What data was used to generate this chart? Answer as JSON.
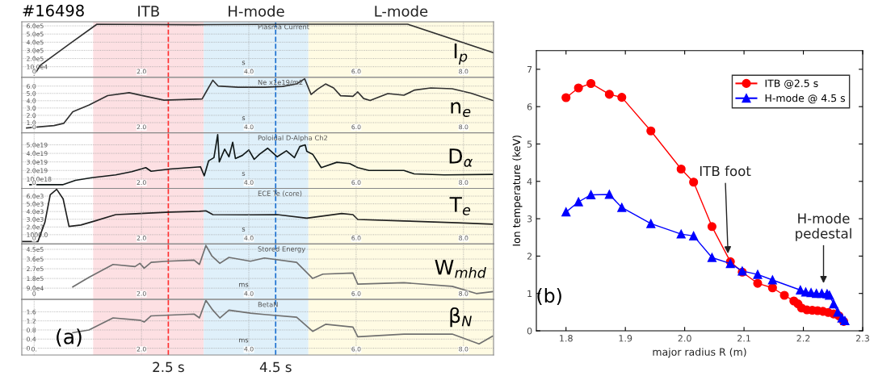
{
  "chart_data": [
    {
      "type": "line",
      "title": "#16498",
      "subtitle": "Plasma Current",
      "xlabel": "s",
      "annotations": [
        "I$_{p}$"
      ],
      "grid": true,
      "xlim": [
        -0.23,
        8.56
      ],
      "xticks": [
        0,
        {
          "value": 2,
          "label": "2.0"
        },
        {
          "value": 4,
          "label": "4.0"
        },
        {
          "value": 6,
          "label": "6.0"
        },
        {
          "value": 8,
          "label": "8.0"
        }
      ],
      "ylim": [
        -30000,
        650000
      ],
      "yticks": [
        {
          "value": 100000,
          "label": "10.0e4"
        },
        {
          "value": 200000,
          "label": "2.0e5"
        },
        {
          "value": 300000,
          "label": "3.0e5"
        },
        {
          "value": 400000,
          "label": "4.0e5"
        },
        {
          "value": 500000,
          "label": "5.0e5"
        },
        {
          "value": 600000,
          "label": "6.0e5"
        }
      ],
      "bands": [
        {
          "axis": "x",
          "from": 1.1,
          "to": 3.16,
          "label": "ITB",
          "color": "#fde0e3"
        },
        {
          "axis": "x",
          "from": 3.16,
          "to": 5.11,
          "label": "H-mode",
          "color": "#dff0fa"
        },
        {
          "axis": "x",
          "from": 5.11,
          "to": 8.56,
          "label": "L-mode",
          "color": "#fffbe3"
        }
      ],
      "ref_lines": [
        {
          "axis": "x",
          "value": 2.5,
          "color": "#ff3030",
          "line_style": "dashed"
        },
        {
          "axis": "x",
          "value": 4.5,
          "color": "#1a6fd0",
          "line_style": "dashed"
        }
      ],
      "series": [
        {
          "color": "#303030",
          "x": [
            0,
            0.12,
            0.66,
            1.17,
            3.0,
            5.0,
            6.96,
            8.56
          ],
          "values": [
            0,
            120000,
            380000,
            620000,
            615000,
            620000,
            620000,
            270000
          ]
        }
      ]
    },
    {
      "type": "line",
      "subtitle": "Ne x1e19/m2",
      "xlabel": "s",
      "annotations": [
        "n$_{e}$"
      ],
      "grid": true,
      "xlim": [
        -0.23,
        8.56
      ],
      "xticks": [
        0,
        {
          "value": 2,
          "label": "2.0"
        },
        {
          "value": 4,
          "label": "4.0"
        },
        {
          "value": 6,
          "label": "6.0"
        },
        {
          "value": 8,
          "label": "8.0"
        }
      ],
      "ylim": [
        -0.4,
        7.2
      ],
      "yticks": [
        {
          "value": 1,
          "label": "1.0"
        },
        {
          "value": 2,
          "label": "2.0"
        },
        {
          "value": 3,
          "label": "3.0"
        },
        {
          "value": 4,
          "label": "4.0"
        },
        {
          "value": 5,
          "label": "5.0"
        },
        {
          "value": 6,
          "label": "6.0"
        }
      ],
      "bands": [
        {
          "axis": "x",
          "from": 1.1,
          "to": 3.16,
          "color": "#fde0e3"
        },
        {
          "axis": "x",
          "from": 3.16,
          "to": 5.11,
          "color": "#dff0fa"
        },
        {
          "axis": "x",
          "from": 5.11,
          "to": 8.56,
          "color": "#fffbe3"
        }
      ],
      "ref_lines": [
        {
          "axis": "x",
          "value": 2.5,
          "color": "#ff3030",
          "line_style": "dashed"
        },
        {
          "axis": "x",
          "value": 4.5,
          "color": "#1a6fd0",
          "line_style": "dashed"
        }
      ],
      "series": [
        {
          "color": "#303030",
          "x": [
            -0.14,
            0.37,
            0.55,
            0.72,
            1.02,
            1.37,
            1.77,
            2.08,
            2.42,
            3.13,
            3.33,
            3.43,
            3.8,
            4.3,
            4.63,
            4.89,
            5.04,
            5.16,
            5.28,
            5.43,
            5.58,
            5.71,
            5.94,
            6.03,
            6.14,
            6.26,
            6.59,
            6.89,
            7.09,
            7.39,
            7.79,
            8.14,
            8.55
          ],
          "values": [
            0.28,
            0.6,
            0.9,
            2.5,
            3.4,
            4.7,
            5.1,
            4.6,
            4.07,
            4.25,
            6.8,
            6.0,
            5.85,
            5.85,
            5.95,
            6.3,
            7.0,
            4.86,
            5.57,
            6.29,
            5.75,
            4.68,
            4.6,
            5.2,
            4.3,
            4.03,
            4.97,
            4.75,
            5.46,
            5.75,
            5.64,
            5.03,
            4.03
          ]
        }
      ]
    },
    {
      "type": "line",
      "subtitle": "Poloidal D-Alpha Ch2",
      "xlabel": "s",
      "annotations": [
        "D$_{α}$"
      ],
      "grid": true,
      "xlim": [
        -0.23,
        8.56
      ],
      "xticks": [
        0,
        {
          "value": 2,
          "label": "2.0"
        },
        {
          "value": 4,
          "label": "4.0"
        },
        {
          "value": 6,
          "label": "6.0"
        },
        {
          "value": 8,
          "label": "8.0"
        }
      ],
      "ylim": [
        -1e+18,
        6.4e+19
      ],
      "yticks": [
        {
          "value": 1e+19,
          "label": "10.0e18"
        },
        {
          "value": 2e+19,
          "label": "2.0e19"
        },
        {
          "value": 3e+19,
          "label": "3.0e19"
        },
        {
          "value": 4e+19,
          "label": "4.0e19"
        },
        {
          "value": 5e+19,
          "label": "5.0e19"
        }
      ],
      "bands": [
        {
          "axis": "x",
          "from": 1.1,
          "to": 3.16,
          "color": "#fde0e3"
        },
        {
          "axis": "x",
          "from": 3.16,
          "to": 5.11,
          "color": "#dff0fa"
        },
        {
          "axis": "x",
          "from": 5.11,
          "to": 8.56,
          "color": "#fffbe3"
        }
      ],
      "ref_lines": [
        {
          "axis": "x",
          "value": 2.5,
          "color": "#ff3030",
          "line_style": "dashed"
        },
        {
          "axis": "x",
          "value": 4.5,
          "color": "#1a6fd0",
          "line_style": "dashed"
        }
      ],
      "series": [
        {
          "color": "#101818",
          "x": [
            -0.08,
            0.53,
            0.77,
            1.07,
            1.52,
            1.82,
            2.08,
            2.18,
            2.53,
            3.1,
            3.17,
            3.25,
            3.35,
            3.42,
            3.45,
            3.55,
            3.63,
            3.7,
            3.75,
            3.88,
            4.0,
            4.1,
            4.2,
            4.35,
            4.53,
            4.7,
            4.85,
            4.95,
            5.05,
            5.08,
            5.19,
            5.35,
            5.64,
            5.88,
            6.03,
            6.24,
            6.89,
            7.08,
            7.64,
            8.54
          ],
          "values": [
            3.3e+18,
            3.3e+18,
            8.4e+18,
            1.15e+19,
            1.48e+19,
            1.86e+19,
            2.33e+19,
            1.91e+19,
            2.17e+19,
            2.43e+19,
            1.38e+19,
            3.12e+19,
            3.5e+19,
            6.2e+19,
            3e+19,
            4.5e+19,
            3.6e+19,
            5.3e+19,
            3.4e+19,
            3.76e+19,
            4.4e+19,
            3.3e+19,
            3.9e+19,
            4.6e+19,
            3.6e+19,
            4.3e+19,
            3.5e+19,
            4.8e+19,
            5e+19,
            4.24e+19,
            3.9e+19,
            2.33e+19,
            2.96e+19,
            2.8e+19,
            2.33e+19,
            2e+19,
            2e+19,
            1.6e+19,
            1.48e+19,
            1.54e+19
          ]
        }
      ]
    },
    {
      "type": "line",
      "subtitle": "ECE Te (core)",
      "xlabel": "s",
      "annotations": [
        "T$_{e}$"
      ],
      "grid": true,
      "xlim": [
        -0.23,
        8.56
      ],
      "xticks": [
        0,
        {
          "value": 2,
          "label": "2.0"
        },
        {
          "value": 4,
          "label": "4.0"
        },
        {
          "value": 6,
          "label": "6.0"
        },
        {
          "value": 8,
          "label": "8.0"
        }
      ],
      "ylim": [
        -200,
        7000
      ],
      "yticks": [
        {
          "value": 1000,
          "label": "1000.0"
        },
        {
          "value": 2000,
          "label": "2.0e3"
        },
        {
          "value": 3000,
          "label": "3.0e3"
        },
        {
          "value": 4000,
          "label": "4.0e3"
        },
        {
          "value": 5000,
          "label": "5.0e3"
        },
        {
          "value": 6000,
          "label": "6.0e3"
        }
      ],
      "bands": [
        {
          "axis": "x",
          "from": 1.1,
          "to": 3.16,
          "color": "#fde0e3"
        },
        {
          "axis": "x",
          "from": 3.16,
          "to": 5.11,
          "color": "#dff0fa"
        },
        {
          "axis": "x",
          "from": 5.11,
          "to": 8.56,
          "color": "#fffbe3"
        }
      ],
      "ref_lines": [
        {
          "axis": "x",
          "value": 2.5,
          "color": "#ff3030",
          "line_style": "dashed"
        },
        {
          "axis": "x",
          "value": 4.5,
          "color": "#1a6fd0",
          "line_style": "dashed"
        }
      ],
      "series": [
        {
          "color": "#202020",
          "x": [
            -0.23,
            0.07,
            0.2,
            0.3,
            0.42,
            0.54,
            0.65,
            0.87,
            1.13,
            1.52,
            1.97,
            2.53,
            3.08,
            3.2,
            3.33,
            4.03,
            4.53,
            5.08,
            5.73,
            5.94,
            6.03,
            6.89,
            7.89,
            8.54
          ],
          "values": [
            107,
            107,
            2600,
            6180,
            6880,
            5640,
            2070,
            2250,
            2780,
            3600,
            3750,
            3930,
            4030,
            4100,
            3600,
            3570,
            3600,
            3140,
            3750,
            3600,
            2970,
            2780,
            2540,
            2360
          ]
        }
      ]
    },
    {
      "type": "line",
      "subtitle": "Stored Energy",
      "xlabel": "ms",
      "annotations": [
        "W$_{mhd}$"
      ],
      "grid": true,
      "xlim": [
        -0.23,
        8.56
      ],
      "xticks": [
        0,
        {
          "value": 2,
          "label": "2.0"
        },
        {
          "value": 4,
          "label": "4.0"
        },
        {
          "value": 6,
          "label": "6.0"
        },
        {
          "value": 8,
          "label": "8.0"
        }
      ],
      "ylim": [
        -15000,
        500000
      ],
      "yticks": [
        {
          "value": 90000,
          "label": "9.0e4"
        },
        {
          "value": 180000,
          "label": "1.8e5"
        },
        {
          "value": 270000,
          "label": "2.7e5"
        },
        {
          "value": 360000,
          "label": "3.6e5"
        },
        {
          "value": 450000,
          "label": "4.5e5"
        }
      ],
      "bands": [
        {
          "axis": "x",
          "from": 1.1,
          "to": 3.16,
          "color": "#fde0e3"
        },
        {
          "axis": "x",
          "from": 3.16,
          "to": 5.11,
          "color": "#dff0fa"
        },
        {
          "axis": "x",
          "from": 5.11,
          "to": 8.56,
          "color": "#fffbe3"
        }
      ],
      "ref_lines": [
        {
          "axis": "x",
          "value": 2.5,
          "color": "#ff3030",
          "line_style": "dashed"
        },
        {
          "axis": "x",
          "value": 4.5,
          "color": "#1a6fd0",
          "line_style": "dashed"
        }
      ],
      "series": [
        {
          "color": "#707070",
          "x": [
            0.72,
            1.02,
            1.47,
            1.88,
            1.97,
            2.05,
            2.18,
            2.48,
            2.98,
            3.08,
            3.2,
            3.31,
            3.46,
            3.63,
            4.03,
            4.29,
            4.89,
            5.19,
            5.38,
            5.94,
            6.03,
            6.89,
            7.79,
            8.24,
            8.54
          ],
          "values": [
            102000,
            190000,
            310000,
            290000,
            320000,
            275000,
            330000,
            340000,
            350000,
            310000,
            486000,
            390000,
            320000,
            375000,
            340000,
            370000,
            330000,
            180000,
            220000,
            230000,
            128000,
            140000,
            107000,
            40000,
            57000
          ]
        }
      ]
    },
    {
      "type": "line",
      "subtitle": "BetaN",
      "xlabel": "ms",
      "annotations": [
        "β$_{N}$",
        "(a)"
      ],
      "grid": true,
      "xlim": [
        -0.23,
        8.56
      ],
      "xticks": [
        {
          "value": 0,
          "label": "0."
        },
        {
          "value": 2,
          "label": "2.0"
        },
        {
          "value": 4,
          "label": "4.0"
        },
        {
          "value": 6,
          "label": "6.0"
        },
        {
          "value": 8,
          "label": "8.0"
        }
      ],
      "ylim": [
        -0.3,
        2.14
      ],
      "yticks": [
        {
          "value": 0,
          "label": "0."
        },
        0.4,
        0.8,
        1.2,
        1.6
      ],
      "bands": [
        {
          "axis": "x",
          "from": 1.1,
          "to": 3.16,
          "color": "#fde0e3"
        },
        {
          "axis": "x",
          "from": 3.16,
          "to": 5.11,
          "color": "#dff0fa"
        },
        {
          "axis": "x",
          "from": 5.11,
          "to": 8.56,
          "color": "#fffbe3"
        }
      ],
      "ref_lines": [
        {
          "axis": "x",
          "value": 2.5,
          "label": "2.5 s",
          "color": "#ff3030",
          "line_style": "dashed"
        },
        {
          "axis": "x",
          "value": 4.5,
          "label": "4.5 s",
          "color": "#1a6fd0",
          "line_style": "dashed"
        }
      ],
      "series": [
        {
          "color": "#707070",
          "x": [
            0.72,
            1.02,
            1.47,
            1.97,
            2.05,
            2.18,
            2.98,
            3.08,
            3.2,
            3.33,
            3.46,
            3.63,
            4.03,
            4.29,
            4.89,
            5.19,
            5.43,
            5.94,
            6.03,
            6.89,
            7.79,
            8.29,
            8.54
          ],
          "values": [
            0.68,
            0.8,
            1.33,
            1.23,
            1.15,
            1.42,
            1.5,
            1.33,
            2.1,
            1.67,
            1.33,
            1.67,
            1.54,
            1.48,
            1.36,
            0.74,
            1.05,
            0.93,
            0.5,
            0.62,
            0.62,
            0.19,
            0.53
          ]
        }
      ]
    },
    {
      "type": "line",
      "xlabel": "major radius R (m)",
      "ylabel": "Ion temperature (keV)",
      "legend": "top right",
      "annotations": [
        "(b)",
        {
          "text": "ITB foot",
          "x": 2.073,
          "y": 2.07
        },
        "H-mode\npedestal"
      ],
      "xlim": [
        1.75,
        2.3
      ],
      "xticks": [
        1.8,
        1.9,
        {
          "value": 2.0,
          "label": "2.0"
        },
        2.1,
        2.2,
        2.3
      ],
      "ylim": [
        0,
        7.5
      ],
      "yticks": [
        0,
        1,
        2,
        3,
        4,
        5,
        6,
        7
      ],
      "series": [
        {
          "name": "ITB @2.5 s",
          "color": "#ff0000",
          "marker": "circle",
          "x": [
            1.8,
            1.821,
            1.842,
            1.873,
            1.894,
            1.943,
            1.994,
            2.015,
            2.046,
            2.077,
            2.097,
            2.123,
            2.148,
            2.168,
            2.184,
            2.191,
            2.197,
            2.206,
            2.215,
            2.224,
            2.233,
            2.242,
            2.251,
            2.26,
            2.268
          ],
          "values": [
            6.24,
            6.5,
            6.62,
            6.33,
            6.25,
            5.35,
            4.33,
            3.98,
            2.79,
            1.85,
            1.57,
            1.27,
            1.15,
            0.95,
            0.8,
            0.72,
            0.61,
            0.56,
            0.55,
            0.54,
            0.52,
            0.49,
            0.45,
            0.4,
            0.25
          ]
        },
        {
          "name": "H-mode @ 4.5 s",
          "color": "#0000ff",
          "marker": "triangle",
          "x": [
            1.8,
            1.821,
            1.842,
            1.873,
            1.894,
            1.943,
            1.994,
            2.015,
            2.046,
            2.077,
            2.097,
            2.123,
            2.148,
            2.195,
            2.204,
            2.213,
            2.222,
            2.231,
            2.24,
            2.244,
            2.251,
            2.258,
            2.265,
            2.27
          ],
          "values": [
            3.18,
            3.45,
            3.64,
            3.65,
            3.3,
            2.87,
            2.59,
            2.54,
            1.96,
            1.8,
            1.6,
            1.51,
            1.36,
            1.09,
            1.04,
            1.02,
            1.0,
            1.0,
            0.99,
            0.95,
            0.72,
            0.5,
            0.34,
            0.27
          ]
        }
      ]
    }
  ]
}
